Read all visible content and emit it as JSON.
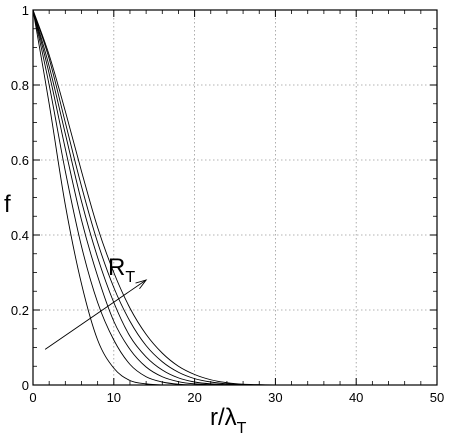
{
  "chart_data": {
    "type": "line",
    "xlabel_main": "r/λ",
    "xlabel_sub": "T",
    "ylabel": "f",
    "annotation_main": "R",
    "annotation_sub": "T",
    "xlim": [
      0,
      50
    ],
    "ylim": [
      0,
      1
    ],
    "xticks": [
      0,
      10,
      20,
      30,
      40,
      50
    ],
    "yticks": [
      0,
      0.2,
      0.4,
      0.6,
      0.8,
      1
    ],
    "xtick_labels": [
      "0",
      "10",
      "20",
      "30",
      "40",
      "50"
    ],
    "ytick_labels": [
      "0",
      "0.2",
      "0.4",
      "0.6",
      "0.8",
      "1"
    ],
    "grid": true,
    "x": [
      0,
      2,
      4,
      6,
      8,
      10,
      12,
      14,
      16,
      18,
      20,
      22,
      24,
      26,
      28,
      30
    ],
    "series": [
      {
        "values": [
          1.0,
          0.75,
          0.48,
          0.27,
          0.12,
          0.045,
          0.012,
          0.003,
          0.0,
          0.0,
          0.0,
          0.0,
          0.0,
          0.0,
          0.0,
          0.0
        ]
      },
      {
        "values": [
          1.0,
          0.8,
          0.57,
          0.37,
          0.22,
          0.12,
          0.055,
          0.022,
          0.008,
          0.002,
          0.0,
          0.0,
          0.0,
          0.0,
          0.0,
          0.0
        ]
      },
      {
        "values": [
          1.0,
          0.83,
          0.63,
          0.44,
          0.29,
          0.17,
          0.095,
          0.048,
          0.022,
          0.009,
          0.003,
          0.001,
          0.0,
          0.0,
          0.0,
          0.0
        ]
      },
      {
        "values": [
          1.0,
          0.85,
          0.67,
          0.49,
          0.34,
          0.22,
          0.13,
          0.075,
          0.04,
          0.019,
          0.008,
          0.003,
          0.001,
          0.0,
          0.0,
          0.0
        ]
      },
      {
        "values": [
          1.0,
          0.87,
          0.7,
          0.53,
          0.38,
          0.26,
          0.17,
          0.105,
          0.062,
          0.034,
          0.017,
          0.008,
          0.003,
          0.001,
          0.0,
          0.0
        ]
      },
      {
        "values": [
          1.0,
          0.88,
          0.73,
          0.57,
          0.42,
          0.3,
          0.205,
          0.135,
          0.085,
          0.05,
          0.028,
          0.014,
          0.006,
          0.002,
          0.001,
          0.0
        ]
      }
    ],
    "arrow": {
      "from": [
        1.5,
        0.095
      ],
      "to": [
        14,
        0.28
      ]
    }
  }
}
